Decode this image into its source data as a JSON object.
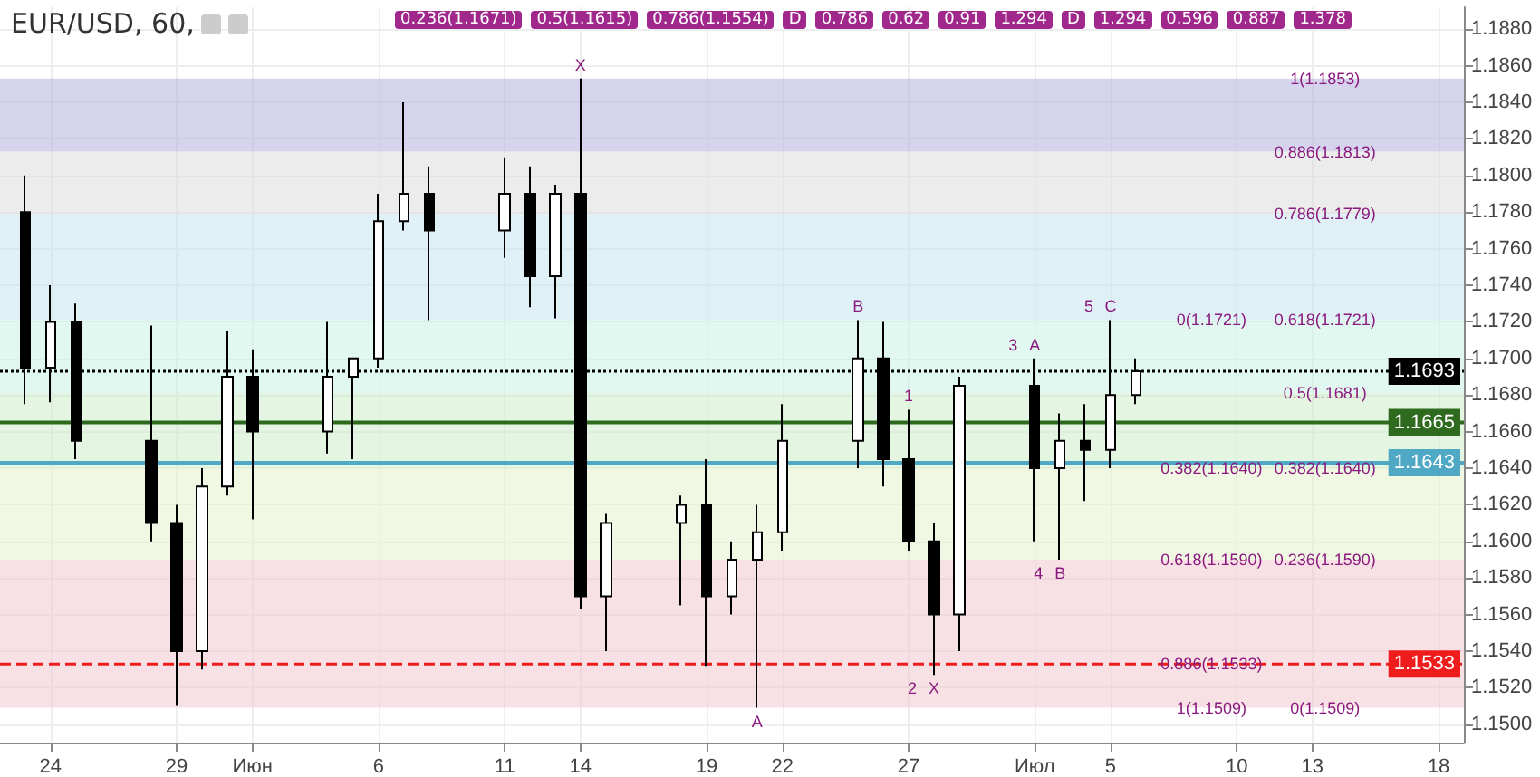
{
  "chart_data": {
    "type": "candlestick",
    "title": "EUR/USD, 60,",
    "color": "#000000",
    "x": [
      "--05-23",
      "--05-24",
      "--05-25",
      "--05-28",
      "--05-29",
      "--05-30",
      "--05-31",
      "--06-01",
      "--06-04",
      "--06-05",
      "--06-06",
      "--06-07",
      "--06-08",
      "--06-11",
      "--06-12",
      "--06-13",
      "--06-14",
      "--06-15",
      "--06-18",
      "--06-19",
      "--06-20",
      "--06-21",
      "--06-22",
      "--06-25",
      "--06-26",
      "--06-27",
      "--06-28",
      "--06-29",
      "--07-02",
      "--07-03",
      "--07-04",
      "--07-05",
      "--07-06"
    ],
    "ohlc": [
      [
        1.178,
        1.18,
        1.1675,
        1.1695
      ],
      [
        1.1695,
        1.174,
        1.1676,
        1.172
      ],
      [
        1.172,
        1.173,
        1.1645,
        1.1655
      ],
      [
        1.1655,
        1.1718,
        1.16,
        1.161
      ],
      [
        1.161,
        1.162,
        1.151,
        1.154
      ],
      [
        1.154,
        1.164,
        1.153,
        1.163
      ],
      [
        1.163,
        1.1715,
        1.1625,
        1.169
      ],
      [
        1.169,
        1.1705,
        1.1612,
        1.166
      ],
      [
        1.166,
        1.172,
        1.1648,
        1.169
      ],
      [
        1.169,
        1.17,
        1.1645,
        1.17
      ],
      [
        1.17,
        1.179,
        1.1695,
        1.1775
      ],
      [
        1.1775,
        1.184,
        1.177,
        1.179
      ],
      [
        1.179,
        1.1805,
        1.1721,
        1.177
      ],
      [
        1.177,
        1.181,
        1.1755,
        1.179
      ],
      [
        1.179,
        1.1805,
        1.1728,
        1.1745
      ],
      [
        1.1745,
        1.1795,
        1.1722,
        1.179
      ],
      [
        1.179,
        1.1853,
        1.1563,
        1.157
      ],
      [
        1.157,
        1.1615,
        1.154,
        1.161
      ],
      [
        1.161,
        1.1625,
        1.1565,
        1.162
      ],
      [
        1.162,
        1.1645,
        1.1532,
        1.157
      ],
      [
        1.157,
        1.16,
        1.156,
        1.159
      ],
      [
        1.159,
        1.162,
        1.1509,
        1.1605
      ],
      [
        1.1605,
        1.1675,
        1.1595,
        1.1655
      ],
      [
        1.1655,
        1.1721,
        1.164,
        1.17
      ],
      [
        1.17,
        1.172,
        1.163,
        1.1645
      ],
      [
        1.1645,
        1.1672,
        1.1595,
        1.16
      ],
      [
        1.16,
        1.161,
        1.1527,
        1.156
      ],
      [
        1.156,
        1.169,
        1.154,
        1.1685
      ],
      [
        1.1685,
        1.17,
        1.16,
        1.164
      ],
      [
        1.164,
        1.167,
        1.159,
        1.1655
      ],
      [
        1.1655,
        1.1675,
        1.1622,
        1.165
      ],
      [
        1.165,
        1.1721,
        1.164,
        1.168
      ],
      [
        1.168,
        1.17,
        1.1675,
        1.1693
      ]
    ],
    "xlim": [
      "--05-22",
      "--07-19"
    ],
    "xticks": [
      {
        "value": "--05-24",
        "label": "24"
      },
      {
        "value": "--05-29",
        "label": "29"
      },
      {
        "value": "--06-01",
        "label": "Июн"
      },
      {
        "value": "--06-06",
        "label": "6"
      },
      {
        "value": "--06-11",
        "label": "11"
      },
      {
        "value": "--06-14",
        "label": "14"
      },
      {
        "value": "--06-19",
        "label": "19"
      },
      {
        "value": "--06-22",
        "label": "22"
      },
      {
        "value": "--06-27",
        "label": "27"
      },
      {
        "value": "--07-02",
        "label": "Июл"
      },
      {
        "value": "--07-05",
        "label": "5"
      },
      {
        "value": "--07-10",
        "label": "10"
      },
      {
        "value": "--07-13",
        "label": "13"
      },
      {
        "value": "--07-18",
        "label": "18"
      }
    ],
    "ylim": [
      1.149,
      1.1892
    ],
    "yticks": [
      {
        "value": 1.15,
        "label": "1.1500"
      },
      {
        "value": 1.152,
        "label": "1.1520"
      },
      {
        "value": 1.154,
        "label": "1.1540"
      },
      {
        "value": 1.156,
        "label": "1.1560"
      },
      {
        "value": 1.158,
        "label": "1.1580"
      },
      {
        "value": 1.16,
        "label": "1.1600"
      },
      {
        "value": 1.162,
        "label": "1.1620"
      },
      {
        "value": 1.164,
        "label": "1.1640"
      },
      {
        "value": 1.166,
        "label": "1.1660"
      },
      {
        "value": 1.168,
        "label": "1.1680"
      },
      {
        "value": 1.17,
        "label": "1.1700"
      },
      {
        "value": 1.172,
        "label": "1.1720"
      },
      {
        "value": 1.174,
        "label": "1.1740"
      },
      {
        "value": 1.176,
        "label": "1.1760"
      },
      {
        "value": 1.178,
        "label": "1.1780"
      },
      {
        "value": 1.18,
        "label": "1.1800"
      },
      {
        "value": 1.182,
        "label": "1.1820"
      },
      {
        "value": 1.184,
        "label": "1.1840"
      },
      {
        "value": 1.186,
        "label": "1.1860"
      },
      {
        "value": 1.188,
        "label": "1.1880"
      }
    ],
    "grid": true,
    "bands": [
      {
        "axis": "y",
        "from": 1.1813,
        "to": 1.1853,
        "color": "#b3b0dc"
      },
      {
        "axis": "y",
        "from": 1.1779,
        "to": 1.1813,
        "color": "#dcdcdc"
      },
      {
        "axis": "y",
        "from": 1.1721,
        "to": 1.1779,
        "color": "#c6e3f0"
      },
      {
        "axis": "y",
        "from": 1.1681,
        "to": 1.1721,
        "color": "#c9f2e3"
      },
      {
        "axis": "y",
        "from": 1.164,
        "to": 1.1681,
        "color": "#cdefcb"
      },
      {
        "axis": "y",
        "from": 1.159,
        "to": 1.164,
        "color": "#e3f3cc"
      },
      {
        "axis": "y",
        "from": 1.1509,
        "to": 1.159,
        "color": "#f2c9cf"
      }
    ],
    "ref_lines": [
      {
        "axis": "y",
        "value": 1.1693,
        "label": "1.1693",
        "color": "#000000",
        "line_style": "dotted"
      },
      {
        "axis": "y",
        "value": 1.1665,
        "label": "1.1665",
        "color": "#2e6b1f",
        "line_style": "solid"
      },
      {
        "axis": "y",
        "value": 1.1643,
        "label": "1.1643",
        "color": "#4fa8c4",
        "line_style": "solid"
      },
      {
        "axis": "y",
        "value": 1.1533,
        "label": "1.1533",
        "color": "#ee1c1c",
        "line_style": "dashed"
      }
    ],
    "annotations": [
      {
        "text": "1(1.1853)",
        "x": "--07-13T12:00",
        "y": 1.1853
      },
      {
        "text": "0.886(1.1813)",
        "x": "--07-13T12:00",
        "y": 1.1813
      },
      {
        "text": "0.786(1.1779)",
        "x": "--07-13T12:00",
        "y": 1.1779
      },
      {
        "text": "0.618(1.1721)",
        "x": "--07-13T12:00",
        "y": 1.1721
      },
      {
        "text": "0.5(1.1681)",
        "x": "--07-13T12:00",
        "y": 1.1681
      },
      {
        "text": "0.382(1.1640)",
        "x": "--07-13T12:00",
        "y": 1.164
      },
      {
        "text": "0.236(1.1590)",
        "x": "--07-13T12:00",
        "y": 1.159
      },
      {
        "text": "0(1.1509)",
        "x": "--07-13T12:00",
        "y": 1.1509
      },
      {
        "text": "0(1.1721)",
        "x": "--07-09",
        "y": 1.1721
      },
      "0.236(1.1671)",
      {
        "text": "0.382(1.1640)",
        "x": "--07-09",
        "y": 1.164
      },
      "0.5(1.1615)",
      {
        "text": "0.618(1.1590)",
        "x": "--07-09",
        "y": 1.159
      },
      "0.786(1.1554)",
      {
        "text": "0.886(1.1533)",
        "x": "--07-09",
        "y": 1.1533
      },
      {
        "text": "1(1.1509)",
        "x": "--07-09",
        "y": 1.1509
      },
      {
        "text": "X",
        "x": "--06-14",
        "y": 1.1853
      },
      {
        "text": "A",
        "x": "--06-21",
        "y": 1.1509
      },
      {
        "text": "B",
        "x": "--06-25",
        "y": 1.1721
      },
      "D",
      "0.786",
      "0.62",
      "0.91",
      "1.294",
      {
        "text": "X",
        "x": "--06-28",
        "y": 1.1527
      },
      {
        "text": "A",
        "x": "--07-02",
        "y": 1.17
      },
      {
        "text": "B",
        "x": "--07-03",
        "y": 1.159
      },
      {
        "text": "C",
        "x": "--07-05",
        "y": 1.1721
      },
      "D",
      "1.294",
      "0.596",
      "0.887",
      "1.378",
      {
        "text": "1",
        "x": "--06-27",
        "y": 1.1672
      },
      {
        "text": "2",
        "x": "--06-28",
        "y": 1.1527
      },
      {
        "text": "3",
        "x": "--07-02",
        "y": 1.17
      },
      {
        "text": "4",
        "x": "--07-03",
        "y": 1.159
      },
      {
        "text": "5",
        "x": "--07-05",
        "y": 1.1721
      }
    ]
  }
}
